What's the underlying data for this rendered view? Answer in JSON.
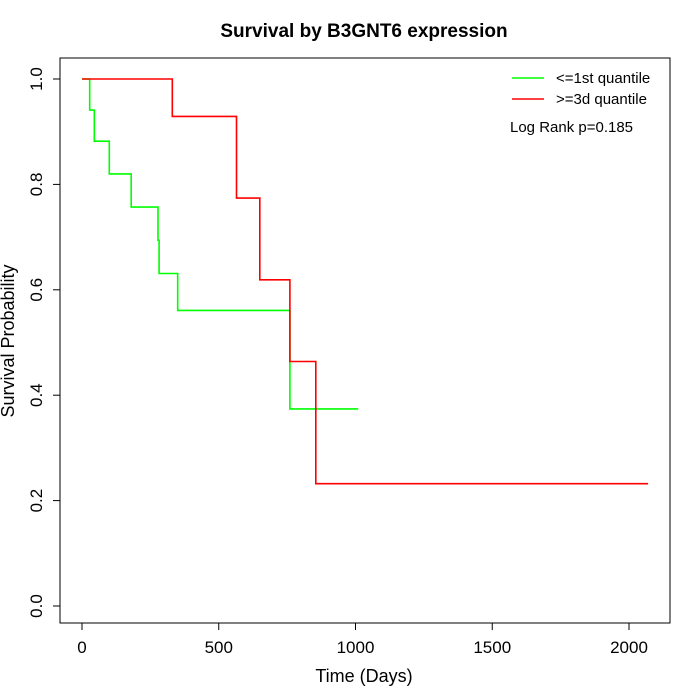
{
  "chart_data": {
    "type": "line",
    "step": true,
    "title": "Survival by B3GNT6 expression",
    "xlabel": "Time (Days)",
    "ylabel": "Survival Probability",
    "xlim": [
      0,
      2070
    ],
    "ylim": [
      0,
      1
    ],
    "x_ticks": [
      0,
      500,
      1000,
      1500,
      2000
    ],
    "y_ticks": [
      0.0,
      0.2,
      0.4,
      0.6,
      0.8,
      1.0
    ],
    "y_tick_labels": [
      "0.0",
      "0.2",
      "0.4",
      "0.6",
      "0.8",
      "1.0"
    ],
    "grid": false,
    "legend_position": "top-right",
    "annotation": "Log Rank p=0.185",
    "series": [
      {
        "name": "<=1st quantile",
        "color": "#00ff00",
        "points": [
          [
            0,
            1.0
          ],
          [
            28,
            1.0
          ],
          [
            28,
            0.941
          ],
          [
            45,
            0.941
          ],
          [
            45,
            0.882
          ],
          [
            100,
            0.882
          ],
          [
            100,
            0.82
          ],
          [
            180,
            0.82
          ],
          [
            180,
            0.757
          ],
          [
            278,
            0.757
          ],
          [
            278,
            0.694
          ],
          [
            282,
            0.694
          ],
          [
            282,
            0.631
          ],
          [
            350,
            0.631
          ],
          [
            350,
            0.561
          ],
          [
            760,
            0.561
          ],
          [
            760,
            0.374
          ],
          [
            1010,
            0.374
          ]
        ]
      },
      {
        "name": ">=3d quantile",
        "color": "#ff0000",
        "points": [
          [
            0,
            1.0
          ],
          [
            330,
            1.0
          ],
          [
            330,
            0.929
          ],
          [
            565,
            0.929
          ],
          [
            565,
            0.774
          ],
          [
            650,
            0.774
          ],
          [
            650,
            0.619
          ],
          [
            760,
            0.619
          ],
          [
            760,
            0.464
          ],
          [
            855,
            0.464
          ],
          [
            855,
            0.232
          ],
          [
            2070,
            0.232
          ]
        ]
      }
    ]
  }
}
